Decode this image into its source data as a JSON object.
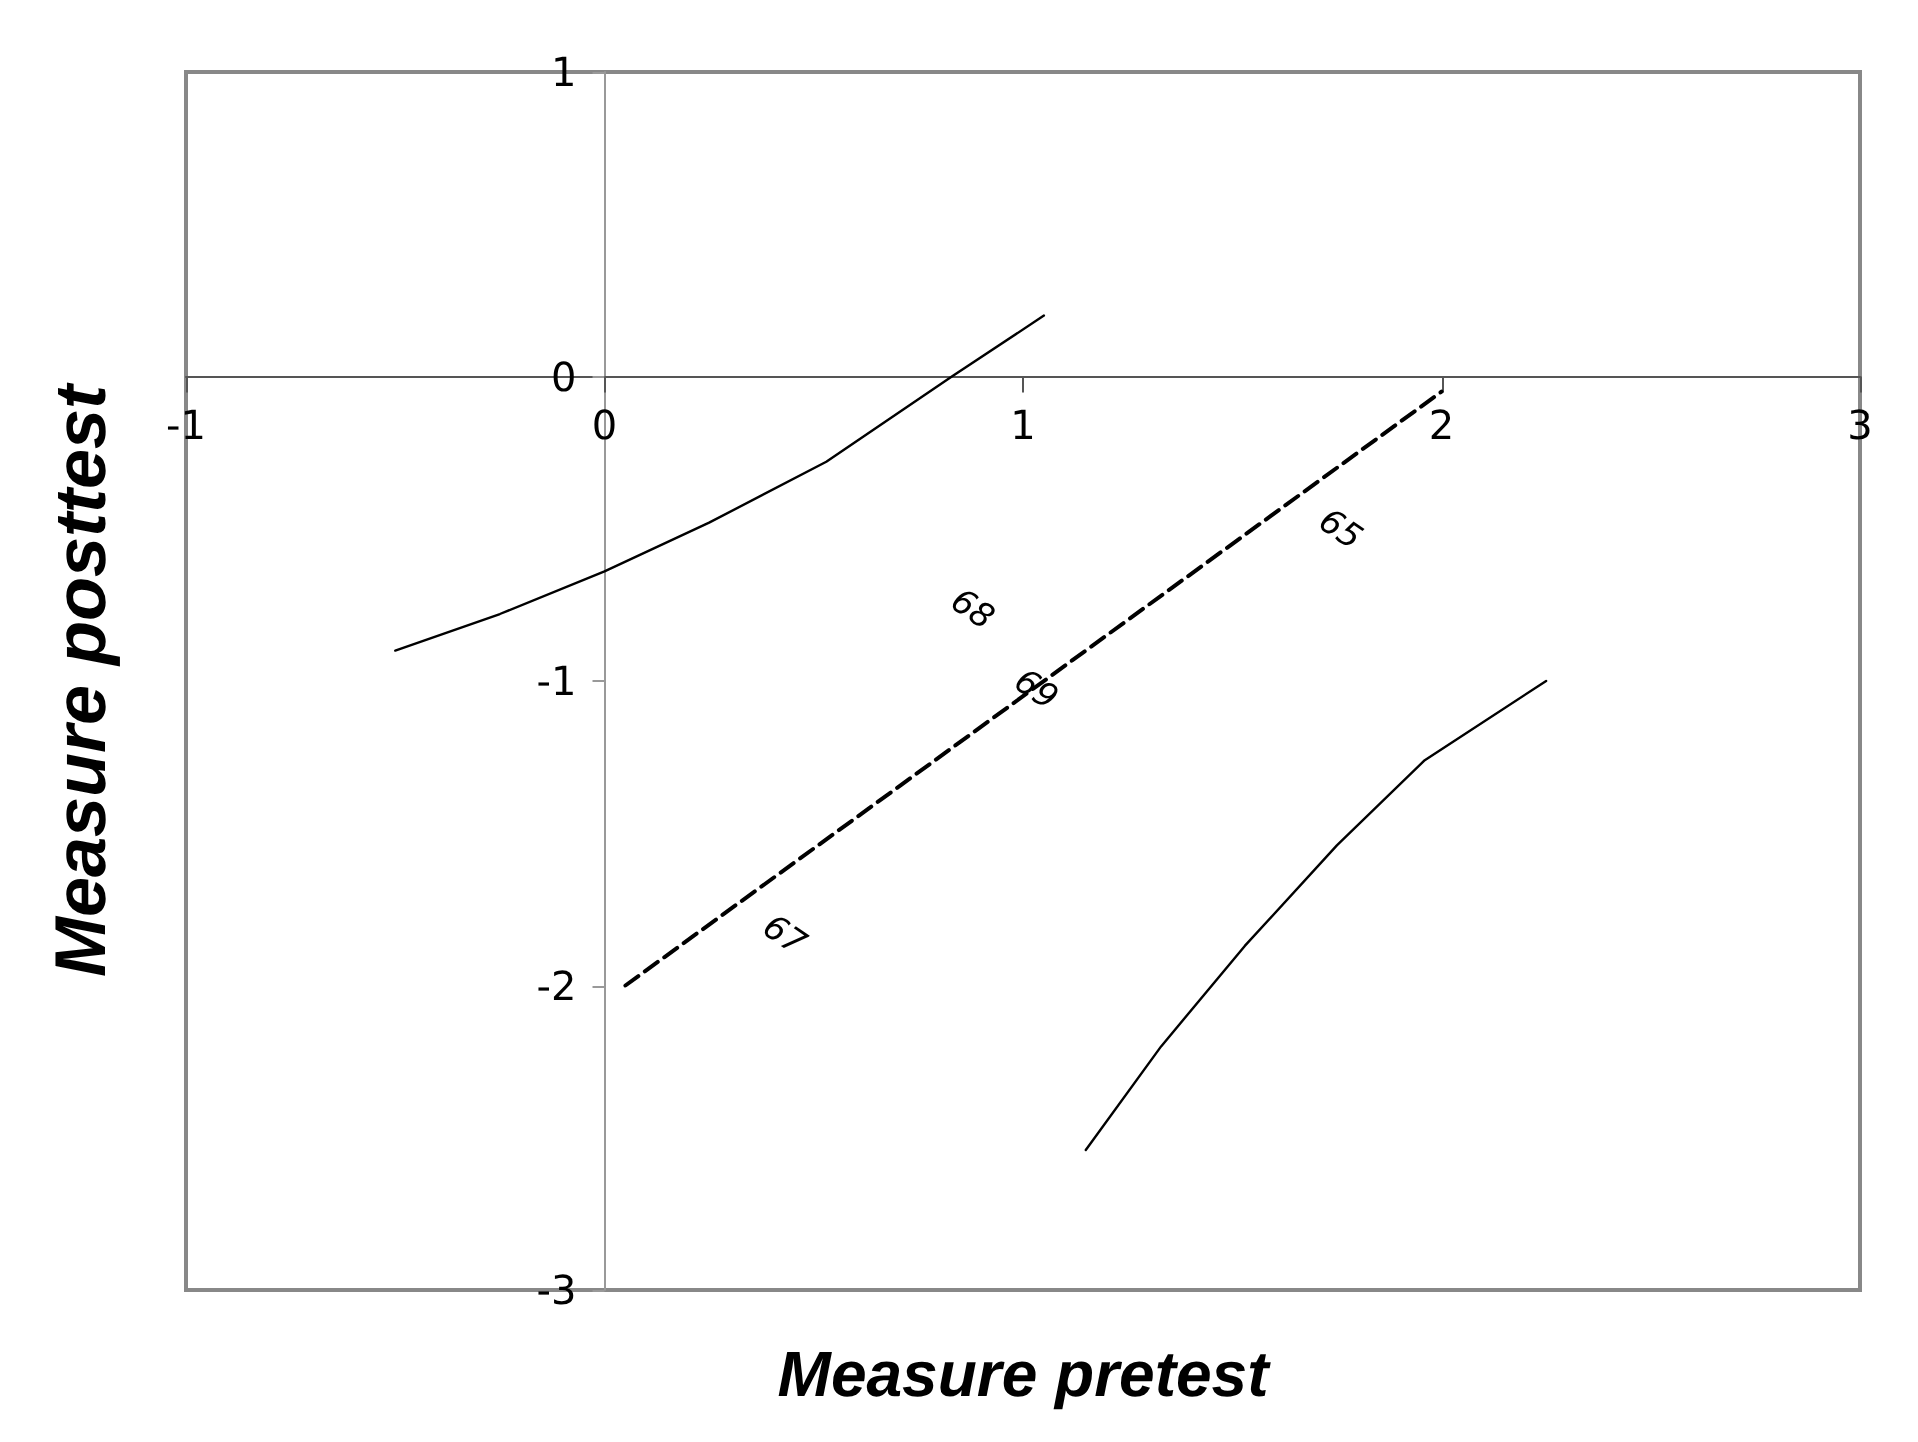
{
  "chart_data": {
    "type": "line",
    "xlabel": "Measure pretest",
    "ylabel": "Measure posttest",
    "xlim": [
      -1,
      3
    ],
    "ylim": [
      -3,
      1
    ],
    "xticks": [
      -1,
      0,
      1,
      2,
      3
    ],
    "yticks": [
      -3,
      -2,
      -1,
      0,
      1
    ],
    "grid": false,
    "marker": "none",
    "series": [
      {
        "color": "#000000",
        "line_style": "solid",
        "x": [
          -0.5,
          -0.25,
          0,
          0.25,
          0.53,
          0.83,
          1.05
        ],
        "values": [
          -0.9,
          -0.78,
          -0.64,
          -0.48,
          -0.28,
          0,
          0.2
        ]
      },
      {
        "color": "#000000",
        "line_style": "dashed",
        "x": [
          0.05,
          2.0
        ],
        "values": [
          -2.0,
          -0.05
        ]
      },
      {
        "color": "#000000",
        "line_style": "solid",
        "x": [
          1.15,
          1.33,
          1.53,
          1.75,
          1.96,
          2.25
        ],
        "values": [
          -2.54,
          -2.2,
          -1.87,
          -1.54,
          -1.26,
          -1.0
        ]
      }
    ],
    "annotations": [
      "65",
      "68",
      {
        "text": "69",
        "x": 1.03,
        "y": -1.03
      },
      "67"
    ]
  }
}
